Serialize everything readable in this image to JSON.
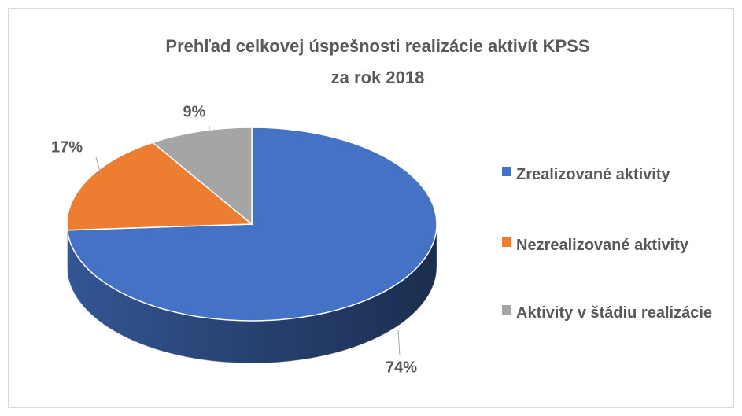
{
  "chart_data": {
    "type": "pie3d",
    "title": [
      "Prehľad celkovej úspešnosti realizácie aktivít KPSS",
      "za rok 2018"
    ],
    "categories": [
      "Zrealizované aktivity",
      "Nezrealizované aktivity",
      "Aktivity v štádiu realizácie"
    ],
    "values": [
      74,
      17,
      9
    ],
    "value_labels": [
      "74%",
      "17%",
      "9%"
    ],
    "colors": [
      "#4472c4",
      "#ed7d31",
      "#a5a5a5"
    ],
    "legend": "right"
  }
}
